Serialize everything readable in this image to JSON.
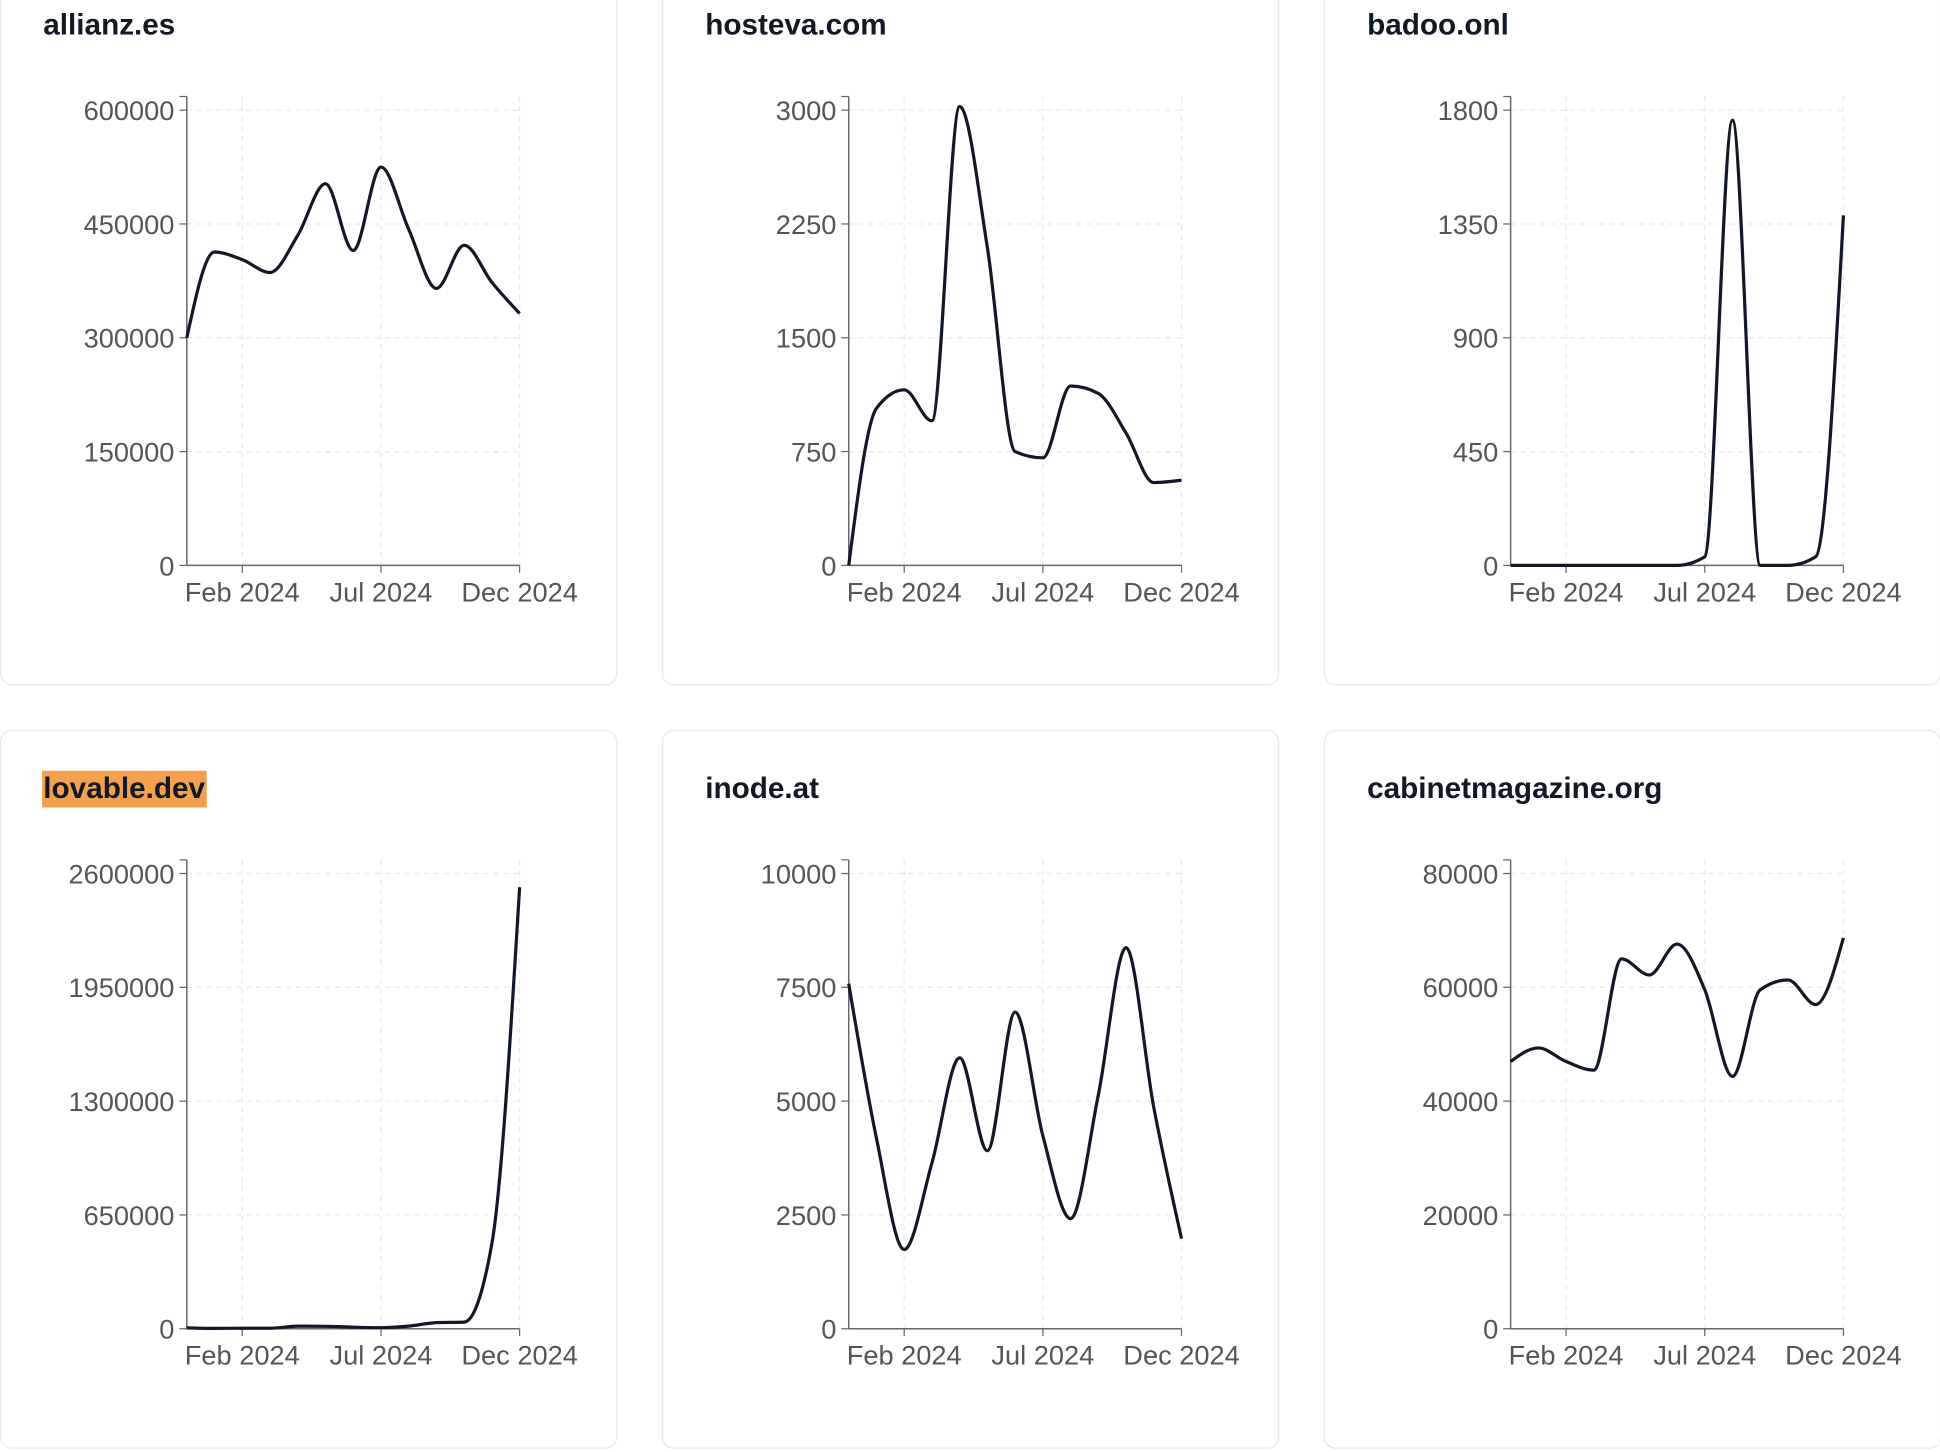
{
  "chart_data": [
    {
      "type": "line",
      "title": "allianz.es",
      "color": "#111827",
      "x": [
        "2023-12",
        "2024-01",
        "2024-02",
        "2024-03",
        "2024-04",
        "2024-05",
        "2024-06",
        "2024-07",
        "2024-08",
        "2024-09",
        "2024-10",
        "2024-11",
        "2024-12"
      ],
      "values": [
        300000,
        413000,
        403000,
        386000,
        435000,
        503000,
        415000,
        525000,
        443000,
        365000,
        422000,
        373000,
        332000
      ],
      "xlim": [
        "2023-12",
        "2024-12"
      ],
      "xticks": [
        {
          "value": "2024-02",
          "label": "Feb 2024"
        },
        {
          "value": "2024-07",
          "label": "Jul 2024"
        },
        {
          "value": "2024-12",
          "label": "Dec 2024"
        }
      ],
      "ylim": [
        0,
        618000
      ],
      "yticks": [
        0,
        150000,
        300000,
        450000,
        600000
      ],
      "grid": true
    },
    {
      "type": "line",
      "title": "hosteva.com",
      "color": "#111827",
      "x": [
        "2023-12",
        "2024-01",
        "2024-02",
        "2024-03",
        "2024-04",
        "2024-05",
        "2024-06",
        "2024-07",
        "2024-08",
        "2024-09",
        "2024-10",
        "2024-11",
        "2024-12"
      ],
      "values": [
        0,
        1035,
        1157,
        953,
        3024,
        2094,
        750,
        709,
        1182,
        1133,
        872,
        546,
        562
      ],
      "xlim": [
        "2023-12",
        "2024-12"
      ],
      "xticks": [
        {
          "value": "2024-02",
          "label": "Feb 2024"
        },
        {
          "value": "2024-07",
          "label": "Jul 2024"
        },
        {
          "value": "2024-12",
          "label": "Dec 2024"
        }
      ],
      "ylim": [
        0,
        3090
      ],
      "yticks": [
        0,
        750,
        1500,
        2250,
        3000
      ],
      "grid": true
    },
    {
      "type": "line",
      "title": "badoo.onl",
      "color": "#111827",
      "x": [
        "2023-12",
        "2024-01",
        "2024-02",
        "2024-03",
        "2024-04",
        "2024-05",
        "2024-06",
        "2024-07",
        "2024-08",
        "2024-09",
        "2024-10",
        "2024-11",
        "2024-12"
      ],
      "values": [
        0,
        0,
        0,
        0,
        0,
        0,
        0,
        34,
        1760,
        0,
        0,
        34,
        1384
      ],
      "xlim": [
        "2023-12",
        "2024-12"
      ],
      "xticks": [
        {
          "value": "2024-02",
          "label": "Feb 2024"
        },
        {
          "value": "2024-07",
          "label": "Jul 2024"
        },
        {
          "value": "2024-12",
          "label": "Dec 2024"
        }
      ],
      "ylim": [
        0,
        1854
      ],
      "yticks": [
        0,
        450,
        900,
        1350,
        1800
      ],
      "grid": true
    },
    {
      "type": "line",
      "title": "lovable.dev",
      "title_highlight": "#f4a04d",
      "color": "#111827",
      "x": [
        "2023-12",
        "2024-01",
        "2024-02",
        "2024-03",
        "2024-04",
        "2024-05",
        "2024-06",
        "2024-07",
        "2024-08",
        "2024-09",
        "2024-10",
        "2024-11",
        "2024-12"
      ],
      "values": [
        5000,
        2000,
        3000,
        3000,
        15000,
        14000,
        9000,
        6000,
        15000,
        35000,
        38000,
        487000,
        2522000
      ],
      "xlim": [
        "2023-12",
        "2024-12"
      ],
      "xticks": [
        {
          "value": "2024-02",
          "label": "Feb 2024"
        },
        {
          "value": "2024-07",
          "label": "Jul 2024"
        },
        {
          "value": "2024-12",
          "label": "Dec 2024"
        }
      ],
      "ylim": [
        0,
        2678000
      ],
      "yticks": [
        0,
        650000,
        1300000,
        1950000,
        2600000
      ],
      "grid": true
    },
    {
      "type": "line",
      "title": "inode.at",
      "color": "#111827",
      "x": [
        "2023-12",
        "2024-01",
        "2024-02",
        "2024-03",
        "2024-04",
        "2024-05",
        "2024-06",
        "2024-07",
        "2024-08",
        "2024-09",
        "2024-10",
        "2024-11",
        "2024-12"
      ],
      "values": [
        7580,
        4185,
        1740,
        3640,
        5950,
        3910,
        6955,
        4240,
        2420,
        5135,
        8370,
        4860,
        1980
      ],
      "xlim": [
        "2023-12",
        "2024-12"
      ],
      "xticks": [
        {
          "value": "2024-02",
          "label": "Feb 2024"
        },
        {
          "value": "2024-07",
          "label": "Jul 2024"
        },
        {
          "value": "2024-12",
          "label": "Dec 2024"
        }
      ],
      "ylim": [
        0,
        10300
      ],
      "yticks": [
        0,
        2500,
        5000,
        7500,
        10000
      ],
      "grid": true
    },
    {
      "type": "line",
      "title": "cabinetmagazine.org",
      "color": "#111827",
      "x": [
        "2023-12",
        "2024-01",
        "2024-02",
        "2024-03",
        "2024-04",
        "2024-05",
        "2024-06",
        "2024-07",
        "2024-08",
        "2024-09",
        "2024-10",
        "2024-11",
        "2024-12"
      ],
      "values": [
        46960,
        49350,
        46960,
        45440,
        65000,
        62170,
        67600,
        59570,
        44350,
        59570,
        61300,
        56960,
        68700
      ],
      "xlim": [
        "2023-12",
        "2024-12"
      ],
      "xticks": [
        {
          "value": "2024-02",
          "label": "Feb 2024"
        },
        {
          "value": "2024-07",
          "label": "Jul 2024"
        },
        {
          "value": "2024-12",
          "label": "Dec 2024"
        }
      ],
      "ylim": [
        0,
        82400
      ],
      "yticks": [
        0,
        20000,
        40000,
        60000,
        80000
      ],
      "grid": true
    }
  ]
}
